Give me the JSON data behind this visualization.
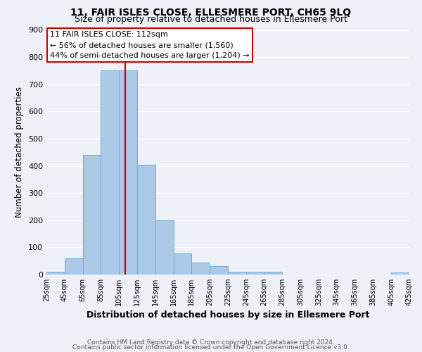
{
  "title": "11, FAIR ISLES CLOSE, ELLESMERE PORT, CH65 9LQ",
  "subtitle": "Size of property relative to detached houses in Ellesmere Port",
  "xlabel": "Distribution of detached houses by size in Ellesmere Port",
  "ylabel": "Number of detached properties",
  "bar_edges": [
    25,
    45,
    65,
    85,
    105,
    125,
    145,
    165,
    185,
    205,
    225,
    245,
    265,
    285,
    305,
    325,
    345,
    365,
    385,
    405,
    425
  ],
  "bar_heights": [
    10,
    60,
    440,
    750,
    750,
    405,
    200,
    78,
    45,
    30,
    10,
    10,
    10,
    0,
    0,
    0,
    0,
    0,
    0,
    8
  ],
  "bar_color": "#adc9e8",
  "bar_edgecolor": "#6baed6",
  "bar_linewidth": 0.7,
  "vline_x": 112,
  "vline_color": "#cc0000",
  "vline_linewidth": 1.5,
  "ylim": [
    0,
    900
  ],
  "yticks": [
    0,
    100,
    200,
    300,
    400,
    500,
    600,
    700,
    800,
    900
  ],
  "tick_labels": [
    "25sqm",
    "45sqm",
    "65sqm",
    "85sqm",
    "105sqm",
    "125sqm",
    "145sqm",
    "165sqm",
    "185sqm",
    "205sqm",
    "225sqm",
    "245sqm",
    "265sqm",
    "285sqm",
    "305sqm",
    "325sqm",
    "345sqm",
    "365sqm",
    "385sqm",
    "405sqm",
    "425sqm"
  ],
  "annotation_title": "11 FAIR ISLES CLOSE: 112sqm",
  "annotation_line1": "← 56% of detached houses are smaller (1,560)",
  "annotation_line2": "44% of semi-detached houses are larger (1,204) →",
  "annotation_box_color": "#ffffff",
  "annotation_box_edgecolor": "#cc0000",
  "footnote1": "Contains HM Land Registry data © Crown copyright and database right 2024.",
  "footnote2": "Contains public sector information licensed under the Open Government Licence v3.0.",
  "background_color": "#eef2f8",
  "grid_color": "#ffffff",
  "title_fontsize": 10,
  "subtitle_fontsize": 9,
  "xlabel_fontsize": 9,
  "ylabel_fontsize": 8.5,
  "tick_fontsize": 7,
  "ytick_fontsize": 8,
  "footnote_fontsize": 6.5,
  "annotation_fontsize": 8
}
